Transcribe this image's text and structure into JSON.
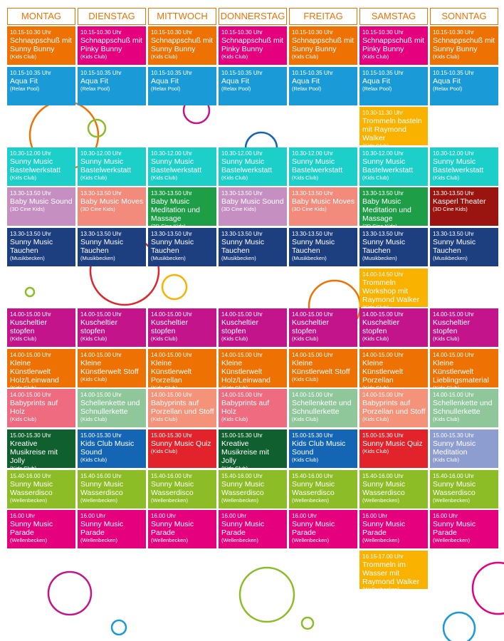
{
  "days": [
    "MONTAG",
    "DIENSTAG",
    "MITTWOCH",
    "DONNERSTAG",
    "FREITAG",
    "SAMSTAG",
    "SONNTAG"
  ],
  "rows": [
    {
      "cells": [
        {
          "time": "10.15-10.30 Uhr",
          "title": "Schnappschuß mit Sunny Bunny",
          "place": "(Kids Club)",
          "color": "#ee7203"
        },
        {
          "time": "10.15-10.30 Uhr",
          "title": "Schnappschuß mit Pinky Bunny",
          "place": "(Kids Club)",
          "color": "#e5007e"
        },
        {
          "time": "10.15-10.30 Uhr",
          "title": "Schnappschuß mit Sunny Bunny",
          "place": "(Kids Club)",
          "color": "#ee7203"
        },
        {
          "time": "10.15-10.30 Uhr",
          "title": "Schnappschuß mit Pinky Bunny",
          "place": "(Kids Club)",
          "color": "#e5007e"
        },
        {
          "time": "10.15-10.30 Uhr",
          "title": "Schnappschuß mit Sunny Bunny",
          "place": "(Kids Club)",
          "color": "#ee7203"
        },
        {
          "time": "10.15-10.30 Uhr",
          "title": "Schnappschuß mit Pinky Bunny",
          "place": "(Kids Club)",
          "color": "#e5007e"
        },
        {
          "time": "10.15-10.30 Uhr",
          "title": "Schnappschuß mit Sunny Bunny",
          "place": "(Kids Club)",
          "color": "#ee7203"
        }
      ]
    },
    {
      "cells": [
        {
          "time": "10.15-10.35 Uhr",
          "title": "Aqua Fit",
          "place": "(Relax Pool)",
          "color": "#1a9ad6"
        },
        {
          "time": "10.15-10.35 Uhr",
          "title": "Aqua Fit",
          "place": "(Relax Pool)",
          "color": "#1a9ad6"
        },
        {
          "time": "10.15-10.35 Uhr",
          "title": "Aqua Fit",
          "place": "(Relax Pool)",
          "color": "#1a9ad6"
        },
        {
          "time": "10.15-10.35 Uhr",
          "title": "Aqua Fit",
          "place": "(Relax Pool)",
          "color": "#1a9ad6"
        },
        {
          "time": "10.15-10.35 Uhr",
          "title": "Aqua Fit",
          "place": "(Relax Pool)",
          "color": "#1a9ad6"
        },
        {
          "time": "10.15-10.35 Uhr",
          "title": "Aqua Fit",
          "place": "(Relax Pool)",
          "color": "#1a9ad6"
        },
        {
          "time": "10.15-10.35 Uhr",
          "title": "Aqua Fit",
          "place": "(Relax Pool)",
          "color": "#1a9ad6"
        }
      ]
    },
    {
      "cells": [
        null,
        null,
        null,
        null,
        null,
        {
          "time": "10.30-11.30 Uhr",
          "title": "Trommeln basteln mit Raymond Walker",
          "place": "(Kids Club)",
          "color": "#f9b200"
        },
        null
      ]
    },
    {
      "cells": [
        {
          "time": "10.30-12.00 Uhr",
          "title": "Sunny Music Bastelwerkstatt",
          "place": "(Kids Club)",
          "color": "#1ccfc9"
        },
        {
          "time": "10.30-12.00 Uhr",
          "title": "Sunny Music Bastelwerkstatt",
          "place": "(Kids Club)",
          "color": "#1ccfc9"
        },
        {
          "time": "10.30-12.00 Uhr",
          "title": "Sunny Music Bastelwerkstatt",
          "place": "(Kids Club)",
          "color": "#1ccfc9"
        },
        {
          "time": "10.30-12.00 Uhr",
          "title": "Sunny Music Bastelwerkstatt",
          "place": "(Kids Club)",
          "color": "#1ccfc9"
        },
        {
          "time": "10.30-12.00 Uhr",
          "title": "Sunny Music Bastelwerkstatt",
          "place": "(Kids Club)",
          "color": "#1ccfc9"
        },
        {
          "time": "10.30-12.00 Uhr",
          "title": "Sunny Music Bastelwerkstatt",
          "place": "(Kids Club)",
          "color": "#1ccfc9"
        },
        {
          "time": "10.30-12.00 Uhr",
          "title": "Sunny Music Bastelwerkstatt",
          "place": "(Kids Club)",
          "color": "#1ccfc9"
        }
      ]
    },
    {
      "cells": [
        {
          "time": "13.30-13.50 Uhr",
          "title": "Baby Music Sound",
          "place": "(3D Cine Kids)",
          "color": "#c58fc2"
        },
        {
          "time": "13.30-13.50 Uhr",
          "title": "Baby Music Moves",
          "place": "(3D Cine Kids)",
          "color": "#f28b7b"
        },
        {
          "time": "13.30-13.50 Uhr",
          "title": "Baby Music Meditation und Massage",
          "place": "(3D Cine Kids)",
          "color": "#1f9e48"
        },
        {
          "time": "13.30-13.50 Uhr",
          "title": "Baby Music Sound",
          "place": "(3D Cine Kids)",
          "color": "#c58fc2"
        },
        {
          "time": "13.30-13.50 Uhr",
          "title": "Baby Music Moves",
          "place": "(3D Cine Kids)",
          "color": "#f28b7b"
        },
        {
          "time": "13.30-13.50 Uhr",
          "title": "Baby Music Meditation und Massage",
          "place": "(3D Cine Kids)",
          "color": "#1f9e48"
        },
        {
          "time": "13.30-13.50 Uhr",
          "title": "Kasperl Theater",
          "place": "(3D Cine Kids)",
          "color": "#9b1510"
        }
      ]
    },
    {
      "cells": [
        {
          "time": "13.30-13.50 Uhr",
          "title": "Sunny Music Tauchen",
          "place": "(Musikbecken)",
          "color": "#1d3f7f"
        },
        {
          "time": "13.30-13.50 Uhr",
          "title": "Sunny Music Tauchen",
          "place": "(Musikbecken)",
          "color": "#1d3f7f"
        },
        {
          "time": "13.30-13.50 Uhr",
          "title": "Sunny Music Tauchen",
          "place": "(Musikbecken)",
          "color": "#1d3f7f"
        },
        {
          "time": "13.30-13.50 Uhr",
          "title": "Sunny Music Tauchen",
          "place": "(Musikbecken)",
          "color": "#1d3f7f"
        },
        {
          "time": "13.30-13.50 Uhr",
          "title": "Sunny Music Tauchen",
          "place": "(Musikbecken)",
          "color": "#1d3f7f"
        },
        {
          "time": "13.30-13.50 Uhr",
          "title": "Sunny Music Tauchen",
          "place": "(Musikbecken)",
          "color": "#1d3f7f"
        },
        {
          "time": "13.30-13.50 Uhr",
          "title": "Sunny Music Tauchen",
          "place": "(Musikbecken)",
          "color": "#1d3f7f"
        }
      ]
    },
    {
      "cells": [
        null,
        null,
        null,
        null,
        null,
        {
          "time": "14.00-14.50 Uhr",
          "title": "Trommeln Workshop mit Raymond Walker",
          "place": "(Kids Club)",
          "color": "#f9b200"
        },
        null
      ]
    },
    {
      "cells": [
        {
          "time": "14.00-15.00 Uhr",
          "title": "Kuscheltier stopfen",
          "place": "(Kids Club)",
          "color": "#c4148c"
        },
        {
          "time": "14.00-15.00 Uhr",
          "title": "Kuscheltier stopfen",
          "place": "(Kids Club)",
          "color": "#c4148c"
        },
        {
          "time": "14.00-15.00 Uhr",
          "title": "Kuscheltier stopfen",
          "place": "(Kids Club)",
          "color": "#c4148c"
        },
        {
          "time": "14.00-15.00 Uhr",
          "title": "Kuscheltier stopfen",
          "place": "(Kids Club)",
          "color": "#c4148c"
        },
        {
          "time": "14.00-15.00 Uhr",
          "title": "Kuscheltier stopfen",
          "place": "(Kids Club)",
          "color": "#c4148c"
        },
        {
          "time": "14.00-15.00 Uhr",
          "title": "Kuscheltier stopfen",
          "place": "(Kids Club)",
          "color": "#c4148c"
        },
        {
          "time": "14.00-15.00 Uhr",
          "title": "Kuscheltier stopfen",
          "place": "(Kids Club)",
          "color": "#c4148c"
        }
      ]
    },
    {
      "cells": [
        {
          "time": "14.00-15.00 Uhr",
          "title": "Kleine Künstlerwelt Holz/Leinwand",
          "place": "(Kids Club)",
          "color": "#ee7203"
        },
        {
          "time": "14.00-15.00 Uhr",
          "title": "Kleine Künstlerwelt Stoff",
          "place": "(Kids Club)",
          "color": "#ee7203"
        },
        {
          "time": "14.00-15.00 Uhr",
          "title": "Kleine Künstlerwelt Porzellan",
          "place": "(Kids Club)",
          "color": "#ee7203"
        },
        {
          "time": "14.00-15.00 Uhr",
          "title": "Kleine Künstlerwelt Holz/Leinwand",
          "place": "(Kids Club)",
          "color": "#ee7203"
        },
        {
          "time": "14.00-15.00 Uhr",
          "title": "Kleine Künstlerwelt Stoff",
          "place": "(Kids Club)",
          "color": "#ee7203"
        },
        {
          "time": "14.00-15.00 Uhr",
          "title": "Kleine Künstlerwelt Porzellan",
          "place": "(Kids Club)",
          "color": "#ee7203"
        },
        {
          "time": "14.00-15.00 Uhr",
          "title": "Kleine Künstlerwelt Lieblingsmaterial",
          "place": "(Kids Club)",
          "color": "#ee7203"
        }
      ]
    },
    {
      "cells": [
        {
          "time": "14.00-15.00 Uhr",
          "title": "Babyprints auf Holz",
          "place": "(Kids Club)",
          "color": "#ef6b7f"
        },
        {
          "time": "14.00-15.00 Uhr",
          "title": "Schellenkette und Schnullerkette",
          "place": "(Kids Club)",
          "color": "#8fc79b"
        },
        {
          "time": "14.00-15.00 Uhr",
          "title": "Babyprints auf Porzellan und Stoff",
          "place": "(Kids Club)",
          "color": "#f4937a"
        },
        {
          "time": "14.00-15.00 Uhr",
          "title": "Babyprints auf Holz",
          "place": "(Kids Club)",
          "color": "#ef6b7f"
        },
        {
          "time": "14.00-15.00 Uhr",
          "title": "Schellenkette und Schnullerkette",
          "place": "(Kids Club)",
          "color": "#8fc79b"
        },
        {
          "time": "14.00-15.00 Uhr",
          "title": "Babyprints auf Porzellan und Stoff",
          "place": "(Kids Club)",
          "color": "#f4937a"
        },
        {
          "time": "14.00-15.00 Uhr",
          "title": "Schellenkette und Schnullerkette",
          "place": "(Kids Club)",
          "color": "#8fc79b"
        }
      ]
    },
    {
      "cells": [
        {
          "time": "15.00-15.30 Uhr",
          "title": "Kreative Musikreise mit Jolly",
          "place": "(Kids Club)",
          "color": "#10602f"
        },
        {
          "time": "15.00-15.30 Uhr",
          "title": "Kids Club Music Sound",
          "place": "(Kids Club)",
          "color": "#1565b5"
        },
        {
          "time": "15.00-15.30 Uhr",
          "title": "Sunny Music Quiz",
          "place": "(Kids Club)",
          "color": "#e2232b"
        },
        {
          "time": "15.00-15.30 Uhr",
          "title": "Kreative Musikreise mit Jolly",
          "place": "(Kids Club)",
          "color": "#10602f"
        },
        {
          "time": "15.00-15.30 Uhr",
          "title": "Kids Club Music Sound",
          "place": "(Kids Club)",
          "color": "#1565b5"
        },
        {
          "time": "15.00-15.30 Uhr",
          "title": "Sunny Music Quiz",
          "place": "(Kids Club)",
          "color": "#e2232b"
        },
        {
          "time": "15.00-15.30 Uhr",
          "title": "Sunny Music Meditation",
          "place": "(Kids Club)",
          "color": "#8e9dd0"
        }
      ]
    },
    {
      "cells": [
        {
          "time": "15.40-16.00 Uhr",
          "title": "Sunny Music Wasserdisco",
          "place": "(Wellenbecken)",
          "color": "#8cbc26"
        },
        {
          "time": "15.40-16.00 Uhr",
          "title": "Sunny Music Wasserdisco",
          "place": "(Wellenbecken)",
          "color": "#8cbc26"
        },
        {
          "time": "15.40-16.00 Uhr",
          "title": "Sunny Music Wasserdisco",
          "place": "(Wellenbecken)",
          "color": "#8cbc26"
        },
        {
          "time": "15.40-16.00 Uhr",
          "title": "Sunny Music Wasserdisco",
          "place": "(Wellenbecken)",
          "color": "#8cbc26"
        },
        {
          "time": "15.40-16.00 Uhr",
          "title": "Sunny Music Wasserdisco",
          "place": "(Wellenbecken)",
          "color": "#8cbc26"
        },
        {
          "time": "15.40-16.00 Uhr",
          "title": "Sunny Music Wasserdisco",
          "place": "(Wellenbecken)",
          "color": "#8cbc26"
        },
        {
          "time": "15.40-16.00 Uhr",
          "title": "Sunny Music Wasserdisco",
          "place": "(Wellenbecken)",
          "color": "#8cbc26"
        }
      ]
    },
    {
      "cells": [
        {
          "time": "16.00 Uhr",
          "title": "Sunny Music Parade",
          "place": "(Wellenbecken)",
          "color": "#e5007e"
        },
        {
          "time": "16.00 Uhr",
          "title": "Sunny Music Parade",
          "place": "(Wellenbecken)",
          "color": "#e5007e"
        },
        {
          "time": "16.00 Uhr",
          "title": "Sunny Music Parade",
          "place": "(Wellenbecken)",
          "color": "#e5007e"
        },
        {
          "time": "16.00 Uhr",
          "title": "Sunny Music Parade",
          "place": "(Wellenbecken)",
          "color": "#e5007e"
        },
        {
          "time": "16.00 Uhr",
          "title": "Sunny Music Parade",
          "place": "(Wellenbecken)",
          "color": "#e5007e"
        },
        {
          "time": "16.00 Uhr",
          "title": "Sunny Music Parade",
          "place": "(Wellenbecken)",
          "color": "#e5007e"
        },
        {
          "time": "16.00 Uhr",
          "title": "Sunny Music Parade",
          "place": "(Wellenbecken)",
          "color": "#e5007e"
        }
      ]
    },
    {
      "cells": [
        null,
        null,
        null,
        null,
        null,
        {
          "time": "16.15-17.00 Uhr",
          "title": "Trommeln im Wasser mit Raymond Walker",
          "place": "(Wellenbecken)",
          "color": "#f9b200"
        },
        null
      ]
    }
  ]
}
